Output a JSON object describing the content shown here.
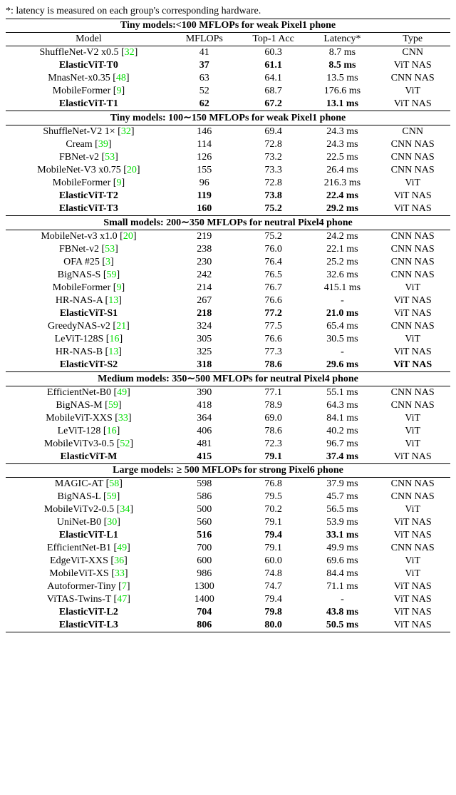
{
  "note_prefix": "*: latency is measured on each group's corresponding hardware.",
  "columns": [
    "Model",
    "MFLOPs",
    "Top-1 Acc",
    "Latency*",
    "Type"
  ],
  "sections": [
    {
      "title": "Tiny models:<100 MFLOPs for weak Pixel1 phone",
      "show_header": true,
      "rows": [
        {
          "model": "ShuffleNet-V2 x0.5",
          "cite": "32",
          "mflops": "41",
          "acc": "60.3",
          "lat": "8.7 ms",
          "type": "CNN",
          "bold": false
        },
        {
          "model": "ElasticViT-T0",
          "cite": null,
          "mflops": "37",
          "acc": "61.1",
          "lat": "8.5 ms",
          "type": "ViT NAS",
          "bold": true
        },
        {
          "model": "MnasNet-x0.35",
          "cite": "48",
          "mflops": "63",
          "acc": "64.1",
          "lat": "13.5 ms",
          "type": "CNN NAS",
          "bold": false
        },
        {
          "model": "MobileFormer",
          "cite": "9",
          "mflops": "52",
          "acc": "68.7",
          "lat": "176.6 ms",
          "type": "ViT",
          "bold": false
        },
        {
          "model": "ElasticViT-T1",
          "cite": null,
          "mflops": "62",
          "acc": "67.2",
          "lat": "13.1 ms",
          "type": "ViT NAS",
          "bold": true
        }
      ]
    },
    {
      "title": "Tiny models: 100∼150 MFLOPs for weak Pixel1 phone",
      "show_header": false,
      "rows": [
        {
          "model": "ShuffleNet-V2 1×",
          "cite": "32",
          "mflops": "146",
          "acc": "69.4",
          "lat": "24.3 ms",
          "type": "CNN",
          "bold": false
        },
        {
          "model": "Cream",
          "cite": "39",
          "mflops": "114",
          "acc": "72.8",
          "lat": "24.3 ms",
          "type": "CNN NAS",
          "bold": false
        },
        {
          "model": "FBNet-v2",
          "cite": "53",
          "mflops": "126",
          "acc": "73.2",
          "lat": "22.5 ms",
          "type": "CNN NAS",
          "bold": false
        },
        {
          "model": "MobileNet-V3 x0.75",
          "cite": "20",
          "mflops": "155",
          "acc": "73.3",
          "lat": "26.4 ms",
          "type": "CNN NAS",
          "bold": false
        },
        {
          "model": "MobileFormer",
          "cite": "9",
          "mflops": "96",
          "acc": "72.8",
          "lat": "216.3 ms",
          "type": "ViT",
          "bold": false
        },
        {
          "model": "ElasticViT-T2",
          "cite": null,
          "mflops": "119",
          "acc": "73.8",
          "lat": "22.4 ms",
          "type": "ViT NAS",
          "bold": true
        },
        {
          "model": "ElasticViT-T3",
          "cite": null,
          "mflops": "160",
          "acc": "75.2",
          "lat": "29.2 ms",
          "type": "ViT NAS",
          "bold": true
        }
      ]
    },
    {
      "title": "Small models: 200∼350 MFLOPs for neutral Pixel4 phone",
      "show_header": false,
      "rows": [
        {
          "model": "MobileNet-v3 x1.0",
          "cite": "20",
          "mflops": "219",
          "acc": "75.2",
          "lat": "24.2 ms",
          "type": "CNN NAS",
          "bold": false
        },
        {
          "model": "FBNet-v2",
          "cite": "53",
          "mflops": "238",
          "acc": "76.0",
          "lat": "22.1 ms",
          "type": "CNN NAS",
          "bold": false
        },
        {
          "model": "OFA #25",
          "cite": "3",
          "mflops": "230",
          "acc": "76.4",
          "lat": "25.2 ms",
          "type": "CNN NAS",
          "bold": false
        },
        {
          "model": "BigNAS-S",
          "cite": "59",
          "mflops": "242",
          "acc": "76.5",
          "lat": "32.6 ms",
          "type": "CNN NAS",
          "bold": false
        },
        {
          "model": "MobileFormer",
          "cite": "9",
          "mflops": "214",
          "acc": "76.7",
          "lat": "415.1 ms",
          "type": "ViT",
          "bold": false
        },
        {
          "model": "HR-NAS-A",
          "cite": "13",
          "mflops": "267",
          "acc": "76.6",
          "lat": "-",
          "type": "ViT NAS",
          "bold": false
        },
        {
          "model": "ElasticViT-S1",
          "cite": null,
          "mflops": "218",
          "acc": "77.2",
          "lat": "21.0 ms",
          "type": "ViT NAS",
          "bold": true
        },
        {
          "model": "GreedyNAS-v2",
          "cite": "21",
          "mflops": "324",
          "acc": "77.5",
          "lat": "65.4 ms",
          "type": "CNN NAS",
          "bold": false
        },
        {
          "model": "LeViT-128S",
          "cite": "16",
          "mflops": "305",
          "acc": "76.6",
          "lat": "30.5 ms",
          "type": "ViT",
          "bold": false
        },
        {
          "model": "HR-NAS-B",
          "cite": "13",
          "mflops": "325",
          "acc": "77.3",
          "lat": "-",
          "type": "ViT NAS",
          "bold": false
        },
        {
          "model": "ElasticViT-S2",
          "cite": null,
          "mflops": "318",
          "acc": "78.6",
          "lat": "29.6 ms",
          "type": "ViT NAS",
          "bold": true,
          "type_bold": true
        }
      ]
    },
    {
      "title": "Medium models: 350∼500 MFLOPs for neutral Pixel4 phone",
      "show_header": false,
      "rows": [
        {
          "model": "EfficientNet-B0",
          "cite": "49",
          "mflops": "390",
          "acc": "77.1",
          "lat": "55.1 ms",
          "type": "CNN NAS",
          "bold": false
        },
        {
          "model": "BigNAS-M",
          "cite": "59",
          "mflops": "418",
          "acc": "78.9",
          "lat": "64.3 ms",
          "type": "CNN NAS",
          "bold": false
        },
        {
          "model": "MobileViT-XXS",
          "cite": "33",
          "mflops": "364",
          "acc": "69.0",
          "lat": "84.1 ms",
          "type": "ViT",
          "bold": false
        },
        {
          "model": "LeViT-128",
          "cite": "16",
          "mflops": "406",
          "acc": "78.6",
          "lat": "40.2 ms",
          "type": "ViT",
          "bold": false
        },
        {
          "model": "MobileViTv3-0.5",
          "cite": "52",
          "mflops": "481",
          "acc": "72.3",
          "lat": "96.7 ms",
          "type": "ViT",
          "bold": false
        },
        {
          "model": "ElasticViT-M",
          "cite": null,
          "mflops": "415",
          "acc": "79.1",
          "lat": "37.4 ms",
          "type": "ViT NAS",
          "bold": true
        }
      ]
    },
    {
      "title": "Large models: ≥ 500 MFLOPs for strong Pixel6 phone",
      "show_header": false,
      "rows": [
        {
          "model": "MAGIC-AT",
          "cite": "58",
          "mflops": "598",
          "acc": "76.8",
          "lat": "37.9 ms",
          "type": "CNN NAS",
          "bold": false
        },
        {
          "model": "BigNAS-L",
          "cite": "59",
          "mflops": "586",
          "acc": "79.5",
          "lat": "45.7 ms",
          "type": "CNN NAS",
          "bold": false
        },
        {
          "model": "MobileViTv2-0.5",
          "cite": "34",
          "mflops": "500",
          "acc": "70.2",
          "lat": "56.5 ms",
          "type": "ViT",
          "bold": false
        },
        {
          "model": "UniNet-B0",
          "cite": "30",
          "mflops": "560",
          "acc": "79.1",
          "lat": "53.9 ms",
          "type": "ViT NAS",
          "bold": false
        },
        {
          "model": "ElasticViT-L1",
          "cite": null,
          "mflops": "516",
          "acc": "79.4",
          "lat": "33.1 ms",
          "type": "ViT NAS",
          "bold": true
        },
        {
          "model": "EfficientNet-B1",
          "cite": "49",
          "mflops": "700",
          "acc": "79.1",
          "lat": "49.9 ms",
          "type": "CNN NAS",
          "bold": false
        },
        {
          "model": "EdgeViT-XXS",
          "cite": "36",
          "mflops": "600",
          "acc": "60.0",
          "lat": "69.6 ms",
          "type": "ViT",
          "bold": false
        },
        {
          "model": "MobileViT-XS",
          "cite": "33",
          "mflops": "986",
          "acc": "74.8",
          "lat": "84.4 ms",
          "type": "ViT",
          "bold": false
        },
        {
          "model": "Autoformer-Tiny",
          "cite": "7",
          "mflops": "1300",
          "acc": "74.7",
          "lat": "71.1 ms",
          "type": "ViT NAS",
          "bold": false
        },
        {
          "model": "ViTAS-Twins-T",
          "cite": "47",
          "mflops": "1400",
          "acc": "79.4",
          "lat": "-",
          "type": "ViT NAS",
          "bold": false
        },
        {
          "model": "ElasticViT-L2",
          "cite": null,
          "mflops": "704",
          "acc": "79.8",
          "lat": "43.8 ms",
          "type": "ViT NAS",
          "bold": true
        },
        {
          "model": "ElasticViT-L3",
          "cite": null,
          "mflops": "806",
          "acc": "80.0",
          "lat": "50.5 ms",
          "type": "ViT NAS",
          "bold": true
        }
      ]
    }
  ]
}
